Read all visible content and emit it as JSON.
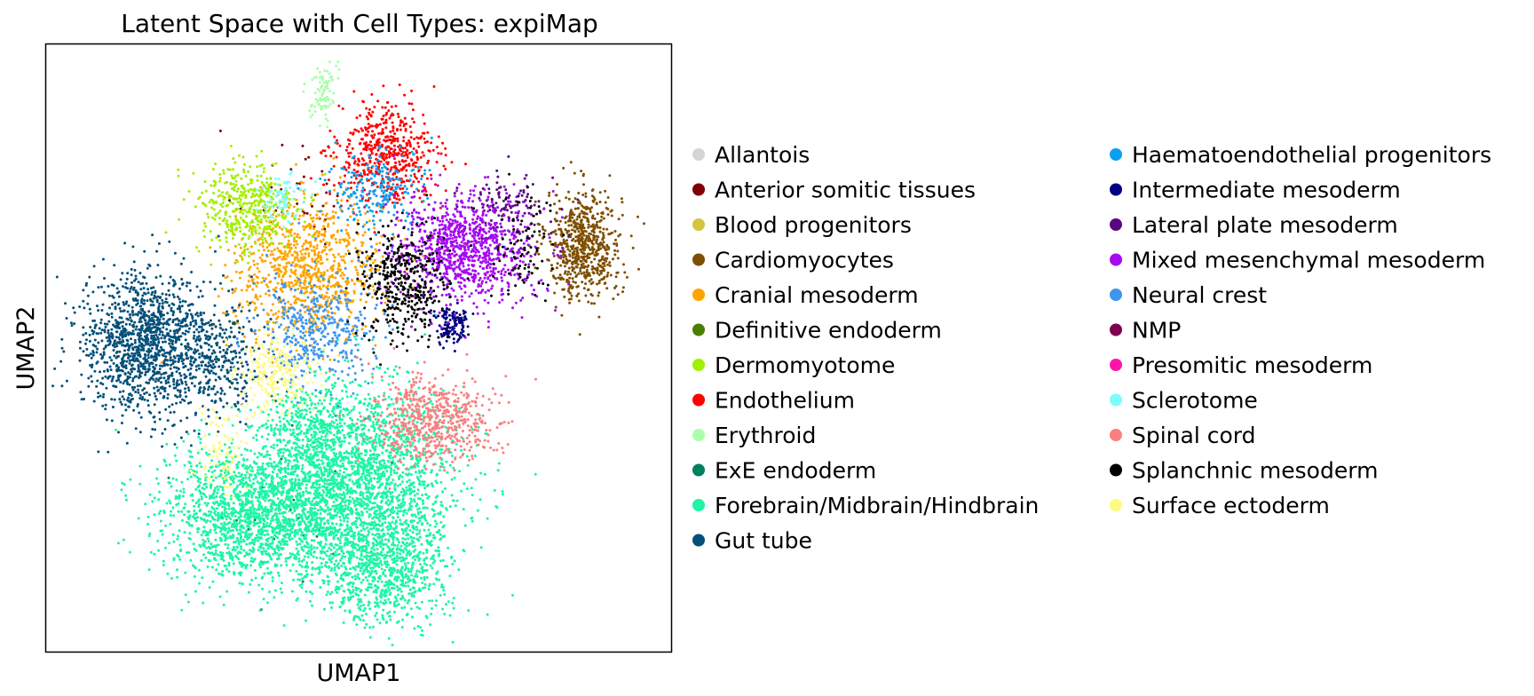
{
  "chart_data": {
    "type": "scatter",
    "title": "Latent Space with Cell Types: expiMap",
    "xlabel": "UMAP1",
    "ylabel": "UMAP2",
    "xticks": [],
    "yticks": [],
    "grid": false,
    "legend_position": "right",
    "legend_columns": 2,
    "xlim": [
      0,
      10
    ],
    "ylim": [
      0,
      10
    ],
    "series": [
      {
        "name": "Allantois",
        "color": "#d5d5d5",
        "clusters": []
      },
      {
        "name": "Anterior somitic tissues",
        "color": "#7f0000",
        "clusters": [
          {
            "x": 4.0,
            "y": 7.6,
            "sx": 0.5,
            "sy": 0.5,
            "n": 40
          }
        ]
      },
      {
        "name": "Blood progenitors",
        "color": "#d4c43f",
        "clusters": []
      },
      {
        "name": "Cardiomyocytes",
        "color": "#7f4f00",
        "clusters": [
          {
            "x": 8.6,
            "y": 6.7,
            "sx": 0.3,
            "sy": 0.45,
            "n": 650
          }
        ]
      },
      {
        "name": "Cranial mesoderm",
        "color": "#ffa500",
        "clusters": [
          {
            "x": 4.2,
            "y": 6.3,
            "sx": 0.6,
            "sy": 0.55,
            "n": 900
          }
        ]
      },
      {
        "name": "Definitive endoderm",
        "color": "#4b7f00",
        "clusters": []
      },
      {
        "name": "Dermomyotome",
        "color": "#a0f000",
        "clusters": [
          {
            "x": 3.2,
            "y": 7.3,
            "sx": 0.4,
            "sy": 0.4,
            "n": 420
          }
        ]
      },
      {
        "name": "Endothelium",
        "color": "#ff0000",
        "clusters": [
          {
            "x": 5.45,
            "y": 8.2,
            "sx": 0.4,
            "sy": 0.4,
            "n": 520
          }
        ]
      },
      {
        "name": "Erythroid",
        "color": "#aaffaa",
        "clusters": [
          {
            "x": 4.45,
            "y": 9.2,
            "sx": 0.1,
            "sy": 0.25,
            "n": 90
          }
        ]
      },
      {
        "name": "ExE endoderm",
        "color": "#007f5f",
        "clusters": [
          {
            "x": 3.6,
            "y": 2.5,
            "sx": 0.8,
            "sy": 0.8,
            "n": 30
          }
        ]
      },
      {
        "name": "Forebrain/Midbrain/Hindbrain",
        "color": "#1ff5a5",
        "clusters": [
          {
            "x": 3.5,
            "y": 2.3,
            "sx": 0.8,
            "sy": 0.55,
            "n": 2000
          },
          {
            "x": 5.1,
            "y": 2.9,
            "sx": 0.75,
            "sy": 0.75,
            "n": 1900
          },
          {
            "x": 5.4,
            "y": 1.4,
            "sx": 0.5,
            "sy": 0.45,
            "n": 800
          },
          {
            "x": 4.2,
            "y": 3.6,
            "sx": 0.4,
            "sy": 0.4,
            "n": 300
          }
        ]
      },
      {
        "name": "Gut tube",
        "color": "#04507a",
        "clusters": [
          {
            "x": 1.6,
            "y": 5.05,
            "sx": 0.55,
            "sy": 0.6,
            "n": 1300
          },
          {
            "x": 2.8,
            "y": 4.8,
            "sx": 0.35,
            "sy": 0.45,
            "n": 250
          }
        ]
      },
      {
        "name": "Haematoendothelial progenitors",
        "color": "#0aa0f0",
        "clusters": [
          {
            "x": 5.25,
            "y": 7.6,
            "sx": 0.4,
            "sy": 0.35,
            "n": 220
          }
        ]
      },
      {
        "name": "Intermediate mesoderm",
        "color": "#000080",
        "clusters": [
          {
            "x": 6.5,
            "y": 5.4,
            "sx": 0.14,
            "sy": 0.16,
            "n": 130
          }
        ]
      },
      {
        "name": "Lateral plate mesoderm",
        "color": "#5a087f",
        "clusters": [
          {
            "x": 7.35,
            "y": 7.3,
            "sx": 0.35,
            "sy": 0.3,
            "n": 120
          }
        ]
      },
      {
        "name": "Mixed mesenchymal mesoderm",
        "color": "#a50af0",
        "clusters": [
          {
            "x": 6.7,
            "y": 6.6,
            "sx": 0.55,
            "sy": 0.45,
            "n": 950
          }
        ]
      },
      {
        "name": "Neural crest",
        "color": "#3c96f0",
        "clusters": [
          {
            "x": 4.35,
            "y": 5.3,
            "sx": 0.45,
            "sy": 0.45,
            "n": 420
          }
        ]
      },
      {
        "name": "NMP",
        "color": "#800050",
        "clusters": []
      },
      {
        "name": "Presomitic mesoderm",
        "color": "#ff14aa",
        "clusters": []
      },
      {
        "name": "Sclerotome",
        "color": "#7dfdfd",
        "clusters": [
          {
            "x": 3.8,
            "y": 7.5,
            "sx": 0.2,
            "sy": 0.2,
            "n": 70
          }
        ]
      },
      {
        "name": "Spinal cord",
        "color": "#fa8080",
        "clusters": [
          {
            "x": 6.2,
            "y": 3.8,
            "sx": 0.5,
            "sy": 0.35,
            "n": 600
          }
        ]
      },
      {
        "name": "Splanchnic mesoderm",
        "color": "#000000",
        "clusters": [
          {
            "x": 5.7,
            "y": 6.1,
            "sx": 0.35,
            "sy": 0.45,
            "n": 420
          },
          {
            "x": 7.6,
            "y": 6.7,
            "sx": 0.25,
            "sy": 0.5,
            "n": 90
          }
        ]
      },
      {
        "name": "Surface ectoderm",
        "color": "#fffa80",
        "clusters": [
          {
            "x": 3.7,
            "y": 4.6,
            "sx": 0.3,
            "sy": 0.3,
            "n": 240
          },
          {
            "x": 2.8,
            "y": 3.3,
            "sx": 0.2,
            "sy": 0.35,
            "n": 90
          }
        ]
      }
    ]
  }
}
